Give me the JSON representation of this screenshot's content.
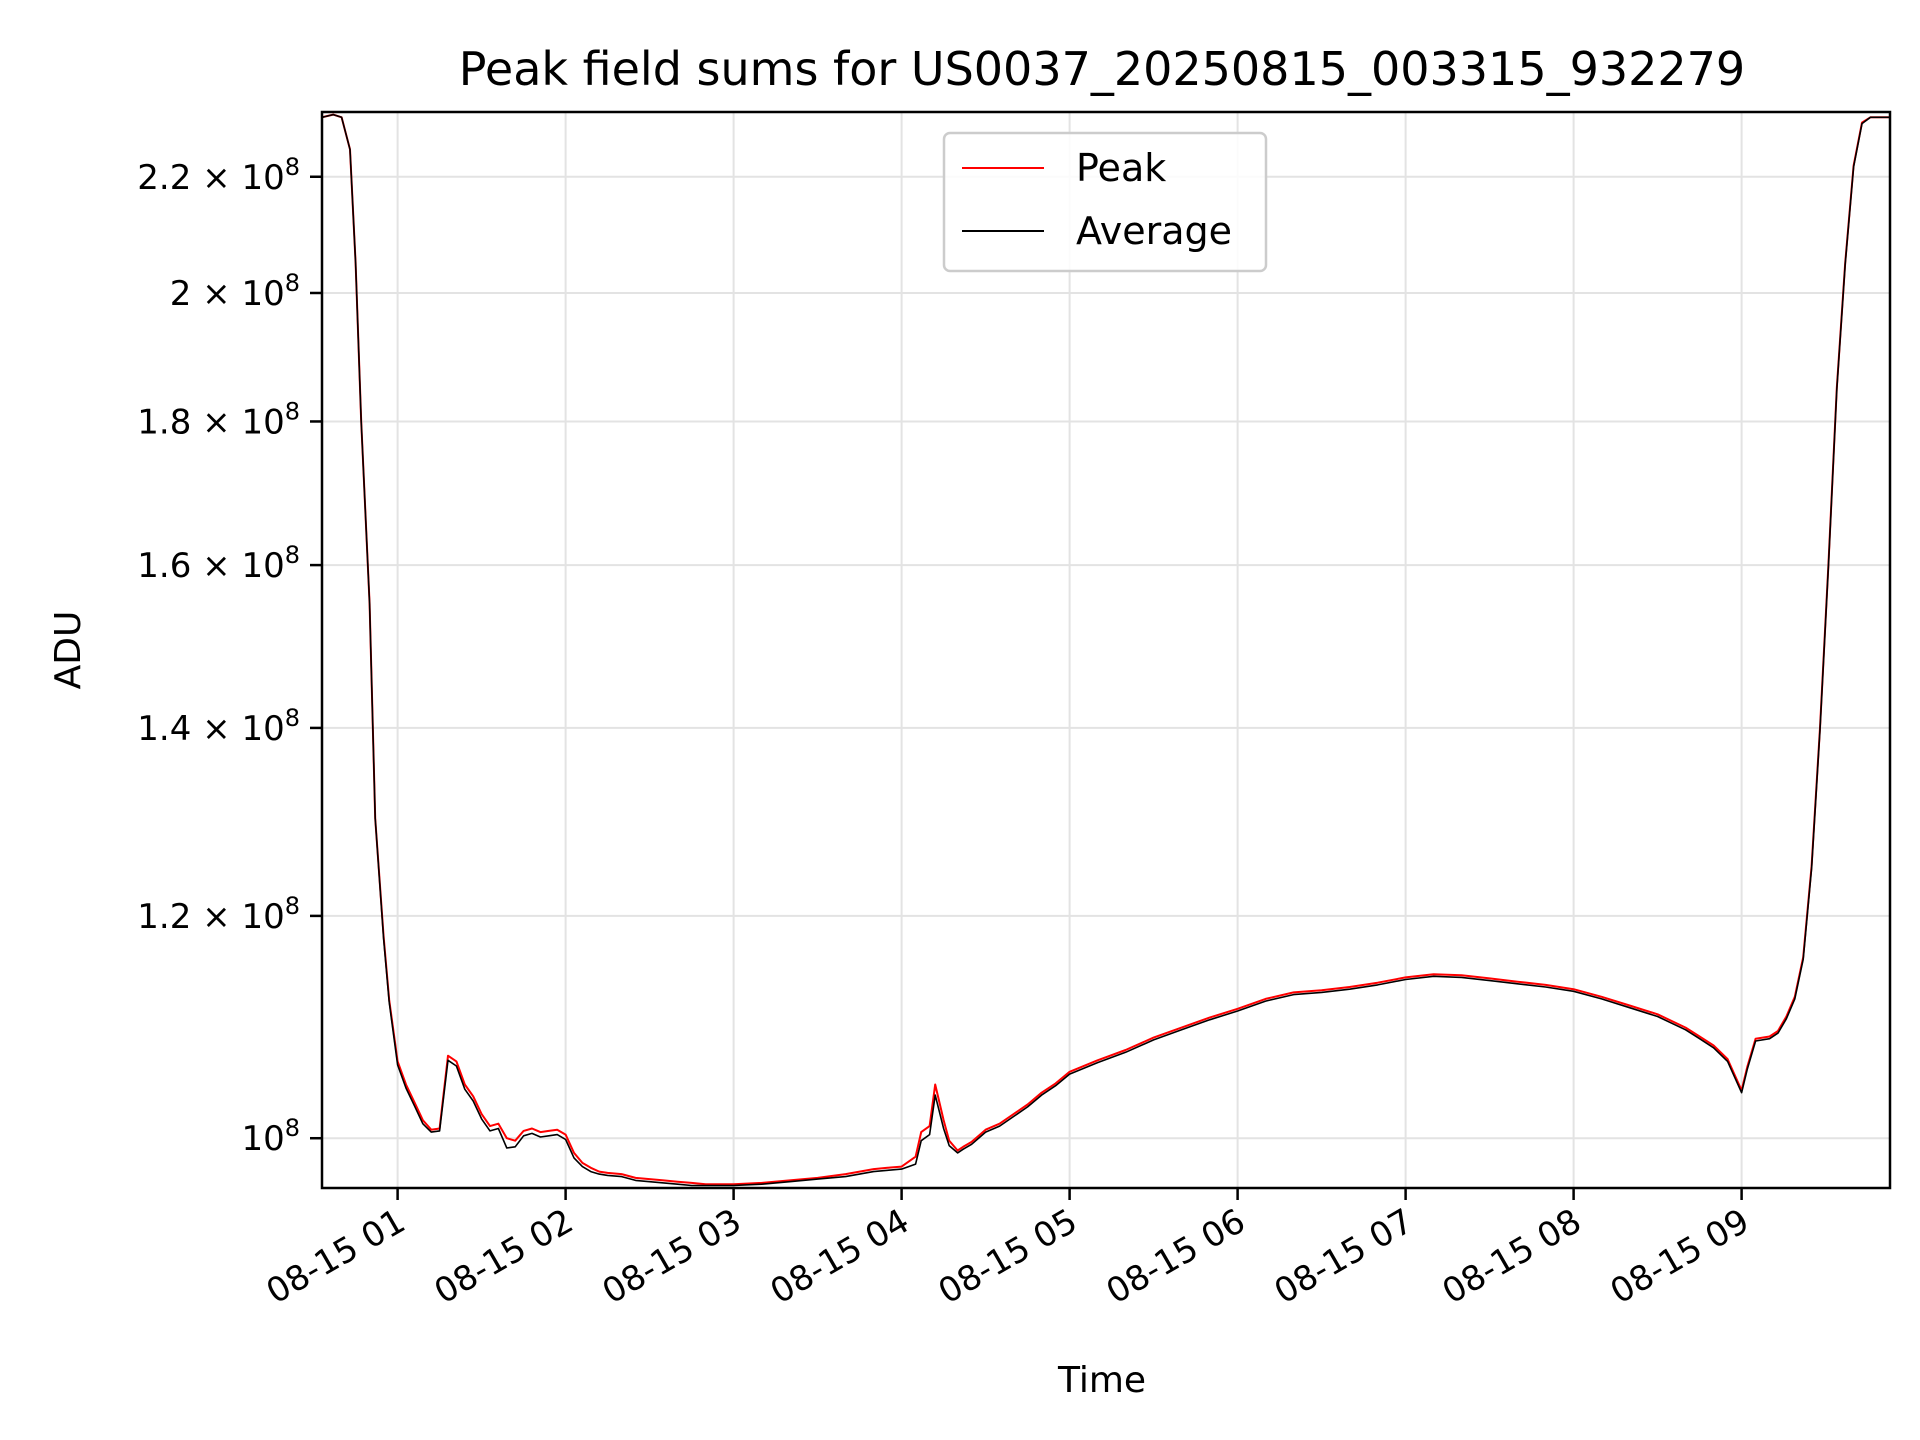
{
  "chart_data": {
    "type": "line",
    "title": "Peak field sums for US0037_20250815_003315_932279",
    "xlabel": "Time",
    "ylabel": "ADU",
    "y_scale": "log",
    "grid": true,
    "legend_position": "top-center",
    "x_range": [
      "08-15 00:33",
      "08-15 09:53"
    ],
    "y_range": [
      96000000,
      232000000
    ],
    "x_ticks": [
      "08-15 01",
      "08-15 02",
      "08-15 03",
      "08-15 04",
      "08-15 05",
      "08-15 06",
      "08-15 07",
      "08-15 08",
      "08-15 09"
    ],
    "y_ticks": [
      {
        "value": 100000000,
        "mantissa": "",
        "exp": "8"
      },
      {
        "value": 120000000,
        "mantissa": "1.2",
        "exp": "8"
      },
      {
        "value": 140000000,
        "mantissa": "1.4",
        "exp": "8"
      },
      {
        "value": 160000000,
        "mantissa": "1.6",
        "exp": "8"
      },
      {
        "value": 180000000,
        "mantissa": "1.8",
        "exp": "8"
      },
      {
        "value": 200000000,
        "mantissa": "2",
        "exp": "8"
      },
      {
        "value": 220000000,
        "mantissa": "2.2",
        "exp": "8"
      }
    ],
    "series": [
      {
        "name": "Peak",
        "color": "#ff0000",
        "x": [
          "00:33",
          "00:37",
          "00:40",
          "00:43",
          "00:45",
          "00:47",
          "00:50",
          "00:52",
          "00:55",
          "00:57",
          "01:00",
          "01:03",
          "01:06",
          "01:09",
          "01:12",
          "01:15",
          "01:18",
          "01:21",
          "01:24",
          "01:27",
          "01:30",
          "01:33",
          "01:36",
          "01:39",
          "01:42",
          "01:45",
          "01:48",
          "01:51",
          "01:54",
          "01:57",
          "02:00",
          "02:03",
          "02:06",
          "02:09",
          "02:12",
          "02:15",
          "02:20",
          "02:25",
          "02:30",
          "02:35",
          "02:40",
          "02:45",
          "02:50",
          "03:00",
          "03:10",
          "03:20",
          "03:30",
          "03:40",
          "03:45",
          "03:50",
          "03:55",
          "04:00",
          "04:05",
          "04:07",
          "04:10",
          "04:12",
          "04:15",
          "04:17",
          "04:20",
          "04:22",
          "04:25",
          "04:28",
          "04:30",
          "04:35",
          "04:40",
          "04:45",
          "04:50",
          "04:55",
          "05:00",
          "05:10",
          "05:20",
          "05:30",
          "05:40",
          "05:50",
          "06:00",
          "06:10",
          "06:20",
          "06:30",
          "06:40",
          "06:50",
          "07:00",
          "07:10",
          "07:20",
          "07:30",
          "07:40",
          "07:50",
          "08:00",
          "08:10",
          "08:20",
          "08:30",
          "08:40",
          "08:45",
          "08:50",
          "08:55",
          "09:00",
          "09:02",
          "09:05",
          "09:10",
          "09:13",
          "09:16",
          "09:19",
          "09:22",
          "09:25",
          "09:28",
          "09:31",
          "09:34",
          "09:37",
          "09:40",
          "09:43",
          "09:46",
          "09:53"
        ],
        "y": [
          231000000,
          231500000,
          231000000,
          225000000,
          205000000,
          180000000,
          155000000,
          130000000,
          118000000,
          112000000,
          106500000,
          104500000,
          103000000,
          101500000,
          100700000,
          100800000,
          107000000,
          106500000,
          104500000,
          103500000,
          102000000,
          101000000,
          101200000,
          100000000,
          99800000,
          100600000,
          100800000,
          100500000,
          100600000,
          100700000,
          100300000,
          98800000,
          98000000,
          97600000,
          97300000,
          97200000,
          97100000,
          96800000,
          96700000,
          96600000,
          96500000,
          96400000,
          96300000,
          96300000,
          96400000,
          96600000,
          96800000,
          97100000,
          97300000,
          97500000,
          97600000,
          97700000,
          98500000,
          100500000,
          101000000,
          104500000,
          101500000,
          99800000,
          99000000,
          99300000,
          99700000,
          100300000,
          100700000,
          101200000,
          102000000,
          102800000,
          103800000,
          104600000,
          105600000,
          106600000,
          107500000,
          108600000,
          109500000,
          110400000,
          111200000,
          112100000,
          112700000,
          112900000,
          113200000,
          113600000,
          114100000,
          114400000,
          114300000,
          114000000,
          113700000,
          113400000,
          113000000,
          112300000,
          111500000,
          110700000,
          109500000,
          108700000,
          107900000,
          106700000,
          104000000,
          106000000,
          108500000,
          108700000,
          109200000,
          110500000,
          112300000,
          116000000,
          125000000,
          140000000,
          160000000,
          185000000,
          205000000,
          222000000,
          230000000,
          231000000,
          231000000
        ]
      },
      {
        "name": "Average",
        "color": "#000000",
        "x": [
          "00:33",
          "00:37",
          "00:40",
          "00:43",
          "00:45",
          "00:47",
          "00:50",
          "00:52",
          "00:55",
          "00:57",
          "01:00",
          "01:03",
          "01:06",
          "01:09",
          "01:12",
          "01:15",
          "01:18",
          "01:21",
          "01:24",
          "01:27",
          "01:30",
          "01:33",
          "01:36",
          "01:39",
          "01:42",
          "01:45",
          "01:48",
          "01:51",
          "01:54",
          "01:57",
          "02:00",
          "02:03",
          "02:06",
          "02:09",
          "02:12",
          "02:15",
          "02:20",
          "02:25",
          "02:30",
          "02:35",
          "02:40",
          "02:45",
          "02:50",
          "03:00",
          "03:10",
          "03:20",
          "03:30",
          "03:40",
          "03:45",
          "03:50",
          "03:55",
          "04:00",
          "04:05",
          "04:07",
          "04:10",
          "04:12",
          "04:15",
          "04:17",
          "04:20",
          "04:22",
          "04:25",
          "04:28",
          "04:30",
          "04:35",
          "04:40",
          "04:45",
          "04:50",
          "04:55",
          "05:00",
          "05:10",
          "05:20",
          "05:30",
          "05:40",
          "05:50",
          "06:00",
          "06:10",
          "06:20",
          "06:30",
          "06:40",
          "06:50",
          "07:00",
          "07:10",
          "07:20",
          "07:30",
          "07:40",
          "07:50",
          "08:00",
          "08:10",
          "08:20",
          "08:30",
          "08:40",
          "08:45",
          "08:50",
          "08:55",
          "09:00",
          "09:02",
          "09:05",
          "09:10",
          "09:13",
          "09:16",
          "09:19",
          "09:22",
          "09:25",
          "09:28",
          "09:31",
          "09:34",
          "09:37",
          "09:40",
          "09:43",
          "09:46",
          "09:53"
        ],
        "y": [
          231000000,
          231500000,
          231000000,
          225000000,
          205000000,
          180000000,
          155000000,
          130000000,
          117800000,
          111800000,
          106200000,
          104200000,
          102700000,
          101200000,
          100500000,
          100600000,
          106600000,
          106100000,
          104100000,
          103100000,
          101600000,
          100600000,
          100800000,
          99200000,
          99300000,
          100200000,
          100400000,
          100100000,
          100200000,
          100300000,
          99900000,
          98400000,
          97700000,
          97300000,
          97100000,
          97000000,
          96900000,
          96600000,
          96500000,
          96400000,
          96300000,
          96200000,
          96200000,
          96200000,
          96300000,
          96500000,
          96700000,
          96900000,
          97100000,
          97300000,
          97400000,
          97500000,
          97900000,
          99800000,
          100300000,
          103600000,
          100800000,
          99400000,
          98800000,
          99100000,
          99500000,
          100100000,
          100500000,
          101000000,
          101800000,
          102600000,
          103600000,
          104400000,
          105400000,
          106400000,
          107300000,
          108400000,
          109300000,
          110200000,
          111000000,
          111900000,
          112500000,
          112700000,
          113000000,
          113400000,
          113900000,
          114200000,
          114100000,
          113800000,
          113500000,
          113200000,
          112800000,
          112100000,
          111300000,
          110500000,
          109300000,
          108500000,
          107700000,
          106500000,
          103800000,
          105800000,
          108300000,
          108500000,
          109000000,
          110300000,
          112100000,
          115800000,
          124800000,
          139800000,
          159800000,
          184800000,
          204800000,
          221800000,
          229800000,
          231000000,
          231000000
        ]
      }
    ]
  }
}
